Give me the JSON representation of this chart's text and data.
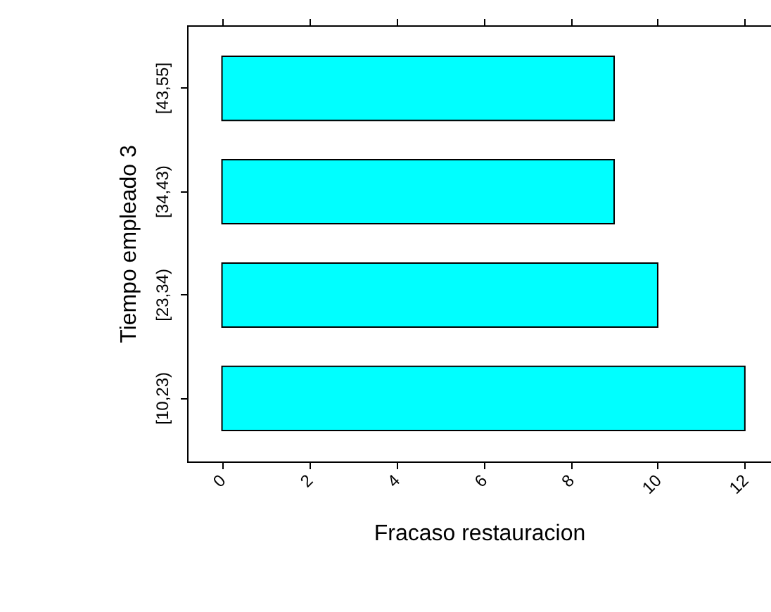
{
  "chart_data": {
    "type": "bar",
    "orientation": "horizontal",
    "xlabel": "Fracaso restauracion",
    "ylabel": "Tiempo empleado 3",
    "categories": [
      "[43,55]",
      "[34,43)",
      "[23,34)",
      "[10,23)"
    ],
    "values": [
      9,
      9,
      10,
      12
    ],
    "color": "#00ffff",
    "xlim": [
      -0.8,
      12.6
    ],
    "xticks": [
      0,
      2,
      4,
      6,
      8,
      10,
      12
    ],
    "grid": false
  }
}
